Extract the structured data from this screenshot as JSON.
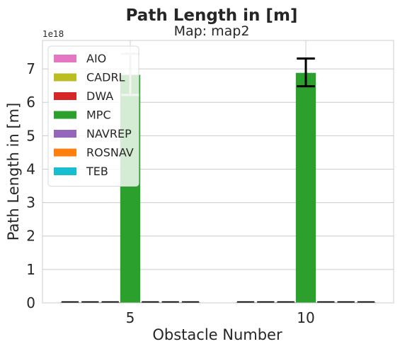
{
  "chart_data": {
    "type": "bar",
    "title": "Path Length in [m]",
    "subtitle": "Map: map2",
    "xlabel": "Obstacle Number",
    "ylabel": "Path Length in [m]",
    "y_offset_label": "1e18",
    "y_scale_exponent": 18,
    "categories": [
      "5",
      "10"
    ],
    "ylim": [
      0,
      7.85
    ],
    "y_ticks": [
      0,
      1,
      2,
      3,
      4,
      5,
      6,
      7
    ],
    "grid": true,
    "legend_position": "top-left",
    "series": [
      {
        "name": "AIO",
        "color": "#e377c2",
        "values": [
          0.02,
          0.02
        ],
        "error": [
          [
            0.02,
            0.02
          ],
          [
            0.02,
            0.02
          ]
        ]
      },
      {
        "name": "CADRL",
        "color": "#bcbd22",
        "values": [
          0.02,
          0.02
        ],
        "error": [
          [
            0.02,
            0.02
          ],
          [
            0.02,
            0.02
          ]
        ]
      },
      {
        "name": "DWA",
        "color": "#d62728",
        "values": [
          0.02,
          0.02
        ],
        "error": [
          [
            0.02,
            0.02
          ],
          [
            0.02,
            0.02
          ]
        ]
      },
      {
        "name": "MPC",
        "color": "#2ca02c",
        "values": [
          6.82,
          6.88
        ],
        "error": [
          [
            6.22,
            7.45
          ],
          [
            6.48,
            7.31
          ]
        ]
      },
      {
        "name": "NAVREP",
        "color": "#9467bd",
        "values": [
          0.02,
          0.02
        ],
        "error": [
          [
            0.02,
            0.02
          ],
          [
            0.02,
            0.02
          ]
        ]
      },
      {
        "name": "ROSNAV",
        "color": "#ff7f0e",
        "values": [
          0.02,
          0.02
        ],
        "error": [
          [
            0.02,
            0.02
          ],
          [
            0.02,
            0.02
          ]
        ]
      },
      {
        "name": "TEB",
        "color": "#17becf",
        "values": [
          0.02,
          0.02
        ],
        "error": [
          [
            0.02,
            0.02
          ],
          [
            0.02,
            0.02
          ]
        ]
      }
    ]
  }
}
